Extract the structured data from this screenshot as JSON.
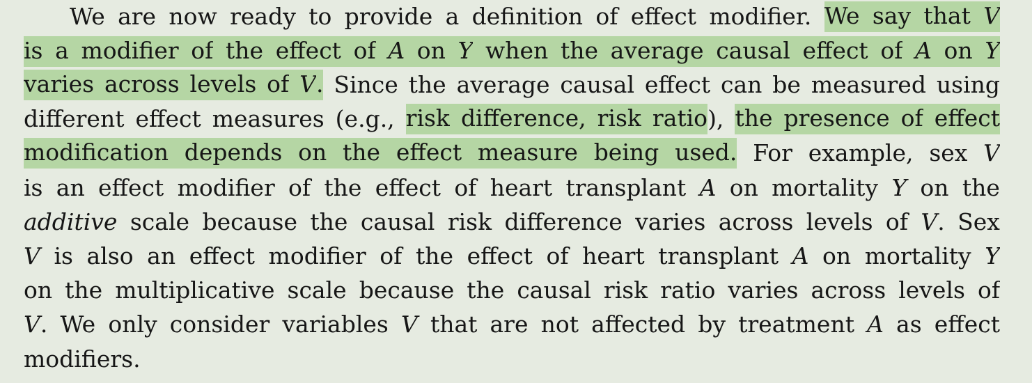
{
  "paragraph": {
    "lines": [
      [
        {
          "text": "We are now ready to provide a definition of effect modifier. ",
          "hl": false
        },
        {
          "text": "We say that ",
          "hl": true
        },
        {
          "text": "V",
          "hl": true,
          "italic": true
        }
      ],
      [
        {
          "text": "is a modifier of the effect of ",
          "hl": true
        },
        {
          "text": "A",
          "hl": true,
          "italic": true
        },
        {
          "text": " on ",
          "hl": true
        },
        {
          "text": "Y",
          "hl": true,
          "italic": true
        },
        {
          "text": " when the average causal effect of ",
          "hl": true
        },
        {
          "text": "A",
          "hl": true,
          "italic": true
        },
        {
          "text": " on ",
          "hl": true
        },
        {
          "text": "Y",
          "hl": true,
          "italic": true
        }
      ],
      [
        {
          "text": "varies across levels of ",
          "hl": true
        },
        {
          "text": "V",
          "hl": true,
          "italic": true
        },
        {
          "text": ".",
          "hl": true
        },
        {
          "text": " Since the average causal effect can be measured using",
          "hl": false
        }
      ],
      [
        {
          "text": "different effect measures (e.g., ",
          "hl": false
        },
        {
          "text": "risk difference, risk ratio",
          "hl": true
        },
        {
          "text": "), ",
          "hl": false
        },
        {
          "text": "the presence of effect",
          "hl": true
        }
      ],
      [
        {
          "text": "modification depends on the effect measure being used.",
          "hl": true
        },
        {
          "text": " For example, sex ",
          "hl": false
        },
        {
          "text": "V",
          "hl": false,
          "italic": true
        }
      ],
      [
        {
          "text": "is an effect modifier of the effect of heart transplant ",
          "hl": false
        },
        {
          "text": "A",
          "hl": false,
          "italic": true
        },
        {
          "text": " on mortality ",
          "hl": false
        },
        {
          "text": "Y",
          "hl": false,
          "italic": true
        },
        {
          "text": " on the",
          "hl": false
        }
      ],
      [
        {
          "text": "additive",
          "hl": false,
          "italic": true
        },
        {
          "text": " scale because the causal risk difference varies across levels of ",
          "hl": false
        },
        {
          "text": "V",
          "hl": false,
          "italic": true
        },
        {
          "text": ". Sex",
          "hl": false
        }
      ],
      [
        {
          "text": "V",
          "hl": false,
          "italic": true
        },
        {
          "text": " is also an effect modifier of the effect of heart transplant ",
          "hl": false
        },
        {
          "text": "A",
          "hl": false,
          "italic": true
        },
        {
          "text": " on mortality ",
          "hl": false
        },
        {
          "text": "Y",
          "hl": false,
          "italic": true
        }
      ],
      [
        {
          "text": "on the multiplicative scale because the causal risk ratio varies across levels of",
          "hl": false
        }
      ],
      [
        {
          "text": "V",
          "hl": false,
          "italic": true
        },
        {
          "text": ". We only consider variables ",
          "hl": false
        },
        {
          "text": "V",
          "hl": false,
          "italic": true
        },
        {
          "text": " that are not affected by treatment ",
          "hl": false
        },
        {
          "text": "A",
          "hl": false,
          "italic": true
        },
        {
          "text": " as effect",
          "hl": false
        }
      ],
      [
        {
          "text": "modifiers.",
          "hl": false
        }
      ]
    ]
  },
  "colors": {
    "background": "#e6ebe1",
    "highlight": "#b5d6a4",
    "text": "#161616"
  }
}
